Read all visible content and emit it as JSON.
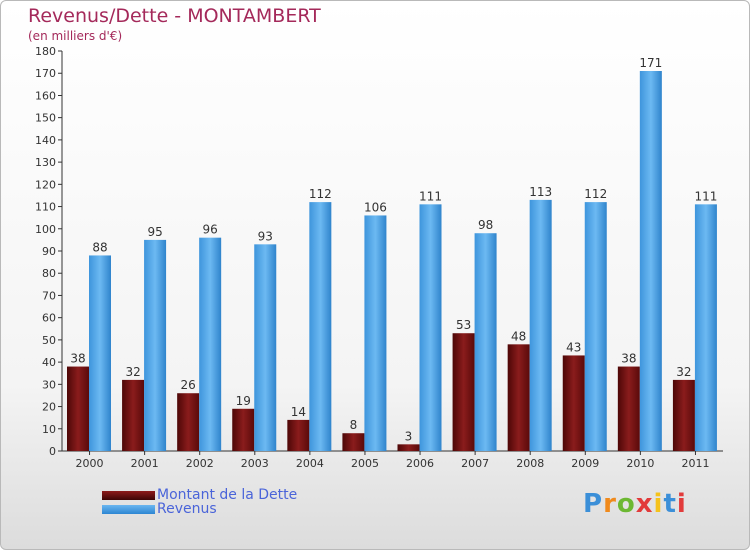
{
  "title": "Revenus/Dette - MONTAMBERT",
  "subtitle": "(en milliers d'€)",
  "legend": [
    {
      "label": "Montant de la Dette",
      "color": "#6e0e0e"
    },
    {
      "label": "Revenus",
      "color": "#4fa3e6"
    }
  ],
  "logo_text": "Proxiti",
  "chart_data": {
    "type": "bar",
    "categories": [
      "2000",
      "2001",
      "2002",
      "2003",
      "2004",
      "2005",
      "2006",
      "2007",
      "2008",
      "2009",
      "2010",
      "2011"
    ],
    "series": [
      {
        "name": "Montant de la Dette",
        "color": "#6e0e0e",
        "values": [
          38,
          32,
          26,
          19,
          14,
          8,
          3,
          53,
          48,
          43,
          38,
          32
        ]
      },
      {
        "name": "Revenus",
        "color": "#4fa3e6",
        "values": [
          88,
          95,
          96,
          93,
          112,
          106,
          111,
          98,
          113,
          112,
          171,
          111
        ]
      }
    ],
    "yticks": [
      0,
      10,
      20,
      30,
      40,
      50,
      60,
      70,
      80,
      90,
      100,
      110,
      120,
      130,
      140,
      150,
      160,
      170,
      180
    ],
    "ylim": [
      0,
      180
    ],
    "grid": false
  }
}
